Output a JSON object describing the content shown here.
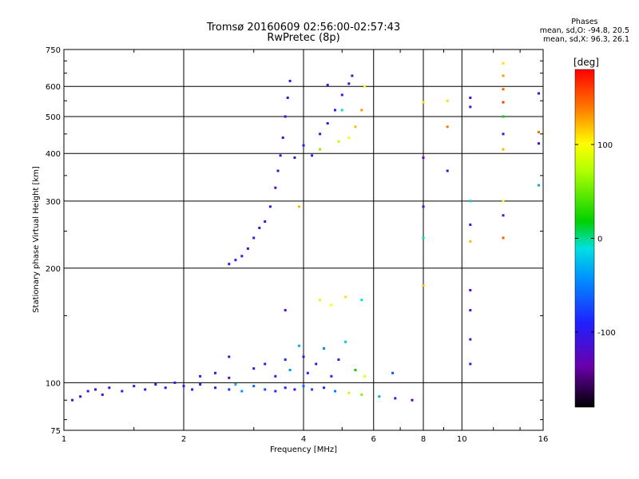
{
  "header": {
    "title_line1": "Tromsø 20160609 02:56:00-02:57:43",
    "title_line2": "RwPretec (8p)",
    "phases_title": "Phases",
    "phases_o": "mean, sd,O: -94.8, 20.5",
    "phases_x": "mean, sd,X:  96.3, 26.1"
  },
  "chart_data": {
    "type": "scatter",
    "xlabel": "Frequency [MHz]",
    "ylabel": "Stationary phase Virtual Height [km]",
    "x_scale": "log",
    "y_scale": "log",
    "xlim": [
      1,
      16
    ],
    "ylim": [
      75,
      750
    ],
    "x_ticks": [
      1,
      2,
      4,
      6,
      8,
      10,
      16
    ],
    "y_ticks": [
      75,
      100,
      200,
      300,
      400,
      500,
      600,
      750
    ],
    "grid": true,
    "colorbar": {
      "label": "[deg]",
      "range": [
        -180,
        180
      ],
      "ticks": [
        100,
        0,
        -100
      ]
    },
    "series": [
      {
        "points": [
          [
            1.05,
            90,
            -110
          ],
          [
            1.1,
            92,
            -108
          ],
          [
            1.15,
            95,
            -112
          ],
          [
            1.2,
            96,
            -105
          ],
          [
            1.25,
            93,
            -110
          ],
          [
            1.3,
            97,
            -100
          ],
          [
            1.4,
            95,
            -106
          ],
          [
            1.5,
            98,
            -108
          ],
          [
            1.6,
            96,
            -102
          ],
          [
            1.7,
            99,
            -110
          ],
          [
            1.8,
            97,
            -104
          ],
          [
            1.9,
            100,
            -95
          ],
          [
            2.0,
            98,
            -100
          ],
          [
            2.1,
            96,
            -108
          ],
          [
            2.2,
            99,
            -100
          ],
          [
            2.4,
            97,
            -90
          ],
          [
            2.6,
            96,
            -80
          ],
          [
            2.7,
            99,
            -30
          ],
          [
            2.8,
            95,
            -40
          ],
          [
            3.0,
            98,
            -60
          ],
          [
            3.2,
            96,
            -70
          ],
          [
            3.4,
            95,
            -85
          ],
          [
            3.6,
            97,
            -90
          ],
          [
            3.8,
            96,
            -92
          ],
          [
            4.0,
            98,
            -60
          ],
          [
            4.2,
            96,
            -75
          ],
          [
            4.5,
            97,
            -85
          ],
          [
            4.8,
            95,
            -50
          ],
          [
            5.2,
            94,
            80
          ],
          [
            5.6,
            93,
            60
          ],
          [
            6.2,
            92,
            -30
          ],
          [
            6.8,
            91,
            -110
          ],
          [
            7.5,
            90,
            -140
          ],
          [
            2.2,
            104,
            -110
          ],
          [
            2.4,
            106,
            -105
          ],
          [
            2.6,
            103,
            -120
          ],
          [
            2.6,
            117,
            -115
          ],
          [
            3.0,
            109,
            -100
          ],
          [
            3.2,
            112,
            -95
          ],
          [
            3.4,
            104,
            -100
          ],
          [
            3.6,
            115,
            -85
          ],
          [
            3.7,
            108,
            -40
          ],
          [
            3.9,
            125,
            -30
          ],
          [
            4.0,
            117,
            -100
          ],
          [
            4.1,
            106,
            -90
          ],
          [
            4.3,
            112,
            -105
          ],
          [
            4.5,
            123,
            -45
          ],
          [
            4.7,
            104,
            -95
          ],
          [
            4.9,
            115,
            -110
          ],
          [
            5.1,
            128,
            -20
          ],
          [
            5.4,
            108,
            20
          ],
          [
            5.7,
            104,
            90
          ],
          [
            6.7,
            106,
            -70
          ],
          [
            3.6,
            155,
            -120
          ],
          [
            4.4,
            165,
            90
          ],
          [
            4.7,
            160,
            100
          ],
          [
            5.1,
            168,
            110
          ],
          [
            5.6,
            165,
            -10
          ],
          [
            2.6,
            205,
            -110
          ],
          [
            2.7,
            210,
            -110
          ],
          [
            2.8,
            215,
            -105
          ],
          [
            2.9,
            225,
            -108
          ],
          [
            3.0,
            240,
            -110
          ],
          [
            3.1,
            255,
            -105
          ],
          [
            3.2,
            265,
            -112
          ],
          [
            3.3,
            290,
            -110
          ],
          [
            3.4,
            325,
            -115
          ],
          [
            3.45,
            360,
            -120
          ],
          [
            3.5,
            395,
            -115
          ],
          [
            3.55,
            440,
            -120
          ],
          [
            3.6,
            500,
            -118
          ],
          [
            3.65,
            560,
            -122
          ],
          [
            3.7,
            620,
            -120
          ],
          [
            3.8,
            390,
            -110
          ],
          [
            4.0,
            420,
            -100
          ],
          [
            4.2,
            395,
            -90
          ],
          [
            4.4,
            450,
            -95
          ],
          [
            4.6,
            480,
            -110
          ],
          [
            4.8,
            520,
            -105
          ],
          [
            5.0,
            570,
            -110
          ],
          [
            5.2,
            610,
            -115
          ],
          [
            5.3,
            640,
            -118
          ],
          [
            4.6,
            605,
            -120
          ],
          [
            4.9,
            430,
            80
          ],
          [
            5.2,
            440,
            100
          ],
          [
            5.4,
            470,
            120
          ],
          [
            5.6,
            520,
            130
          ],
          [
            5.7,
            600,
            100
          ],
          [
            3.9,
            290,
            120
          ],
          [
            4.4,
            410,
            60
          ],
          [
            5.0,
            520,
            -10
          ],
          [
            8.0,
            390,
            -120
          ],
          [
            8.0,
            290,
            -110
          ],
          [
            8.0,
            240,
            -5
          ],
          [
            8.0,
            180,
            120
          ],
          [
            8.0,
            545,
            110
          ],
          [
            9.2,
            360,
            -115
          ],
          [
            9.2,
            550,
            110
          ],
          [
            9.2,
            470,
            140
          ],
          [
            10.5,
            560,
            -120
          ],
          [
            10.5,
            530,
            -110
          ],
          [
            10.5,
            300,
            -20
          ],
          [
            10.5,
            260,
            -90
          ],
          [
            10.5,
            175,
            -125
          ],
          [
            10.5,
            155,
            -115
          ],
          [
            10.5,
            130,
            -110
          ],
          [
            10.5,
            112,
            -100
          ],
          [
            10.5,
            235,
            120
          ],
          [
            12.7,
            690,
            110
          ],
          [
            12.7,
            640,
            130
          ],
          [
            12.7,
            590,
            150
          ],
          [
            12.7,
            545,
            160
          ],
          [
            12.7,
            500,
            20
          ],
          [
            12.7,
            450,
            -110
          ],
          [
            12.7,
            410,
            120
          ],
          [
            12.7,
            300,
            100
          ],
          [
            12.7,
            275,
            -120
          ],
          [
            12.7,
            240,
            150
          ],
          [
            15.6,
            575,
            -115
          ],
          [
            15.6,
            455,
            140
          ],
          [
            15.6,
            425,
            -105
          ],
          [
            15.6,
            330,
            -30
          ]
        ]
      }
    ]
  }
}
